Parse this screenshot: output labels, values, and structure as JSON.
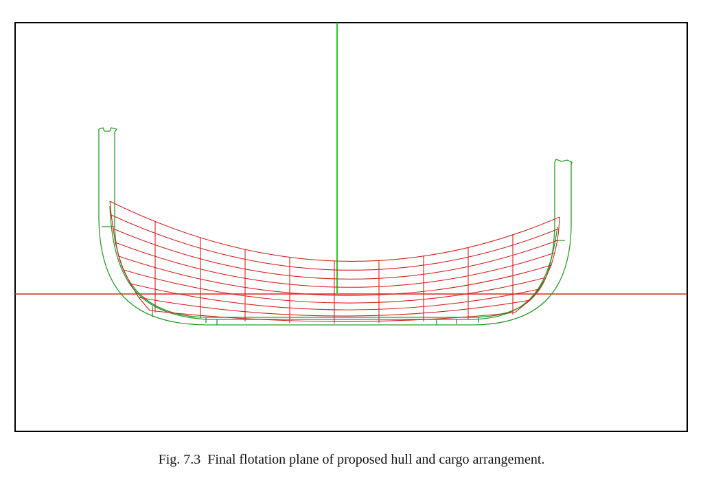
{
  "caption": "Fig. 7.3  Final flotation plane of proposed hull and cargo arrangement."
}
